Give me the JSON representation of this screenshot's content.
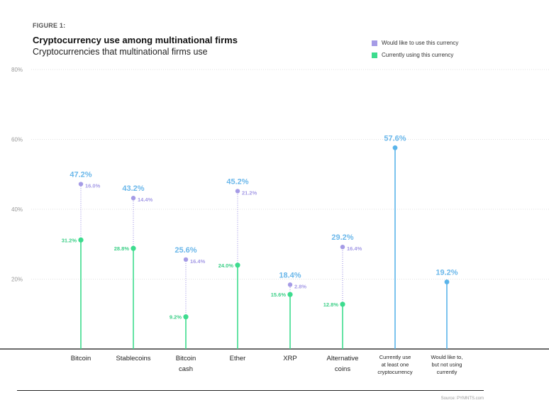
{
  "figure_label": "FIGURE 1:",
  "title": "Cryptocurrency use among multinational firms",
  "subtitle": "Cryptocurrencies that multinational firms use",
  "source": "Source: PYMNTS.com",
  "legend": [
    {
      "label": "Would like to use this currency",
      "color": "#a59be6"
    },
    {
      "label": "Currently using this currency",
      "color": "#3ddc8e"
    }
  ],
  "colors": {
    "want": "#a59be6",
    "using": "#3ddc8e",
    "total": "#5ab4ea",
    "total_label": "#6ab7ea",
    "using_label": "#3ccf87",
    "want_label": "#a59be6"
  },
  "chart_data": {
    "type": "lollipop",
    "ylim": [
      0,
      80
    ],
    "yticks": [
      20,
      40,
      60,
      80
    ],
    "ytick_labels": [
      "20%",
      "40%",
      "60%",
      "80%"
    ],
    "categories": [
      {
        "label": [
          "Bitcoin"
        ],
        "using": 31.2,
        "using_label": "31.2%",
        "want_extra": 16.0,
        "want_label": "16.0%",
        "total": 47.2,
        "total_label": "47.2%"
      },
      {
        "label": [
          "Stablecoins"
        ],
        "using": 28.8,
        "using_label": "28.8%",
        "want_extra": 14.4,
        "want_label": "14.4%",
        "total": 43.2,
        "total_label": "43.2%"
      },
      {
        "label": [
          "Bitcoin",
          "cash"
        ],
        "using": 9.2,
        "using_label": "9.2%",
        "want_extra": 16.4,
        "want_label": "16.4%",
        "total": 25.6,
        "total_label": "25.6%"
      },
      {
        "label": [
          "Ether"
        ],
        "using": 24.0,
        "using_label": "24.0%",
        "want_extra": 21.2,
        "want_label": "21.2%",
        "total": 45.2,
        "total_label": "45.2%"
      },
      {
        "label": [
          "XRP"
        ],
        "using": 15.6,
        "using_label": "15.6%",
        "want_extra": 2.8,
        "want_label": "2.8%",
        "total": 18.4,
        "total_label": "18.4%"
      },
      {
        "label": [
          "Alternative",
          "coins"
        ],
        "using": 12.8,
        "using_label": "12.8%",
        "want_extra": 16.4,
        "want_label": "16.4%",
        "total": 29.2,
        "total_label": "29.2%"
      }
    ],
    "summary": [
      {
        "label": [
          "Currently use",
          "at least one",
          "cryptocurrency"
        ],
        "value": 57.6,
        "value_label": "57.6%"
      },
      {
        "label": [
          "Would like to,",
          "but not using",
          "currently"
        ],
        "value": 19.2,
        "value_label": "19.2%"
      }
    ]
  }
}
